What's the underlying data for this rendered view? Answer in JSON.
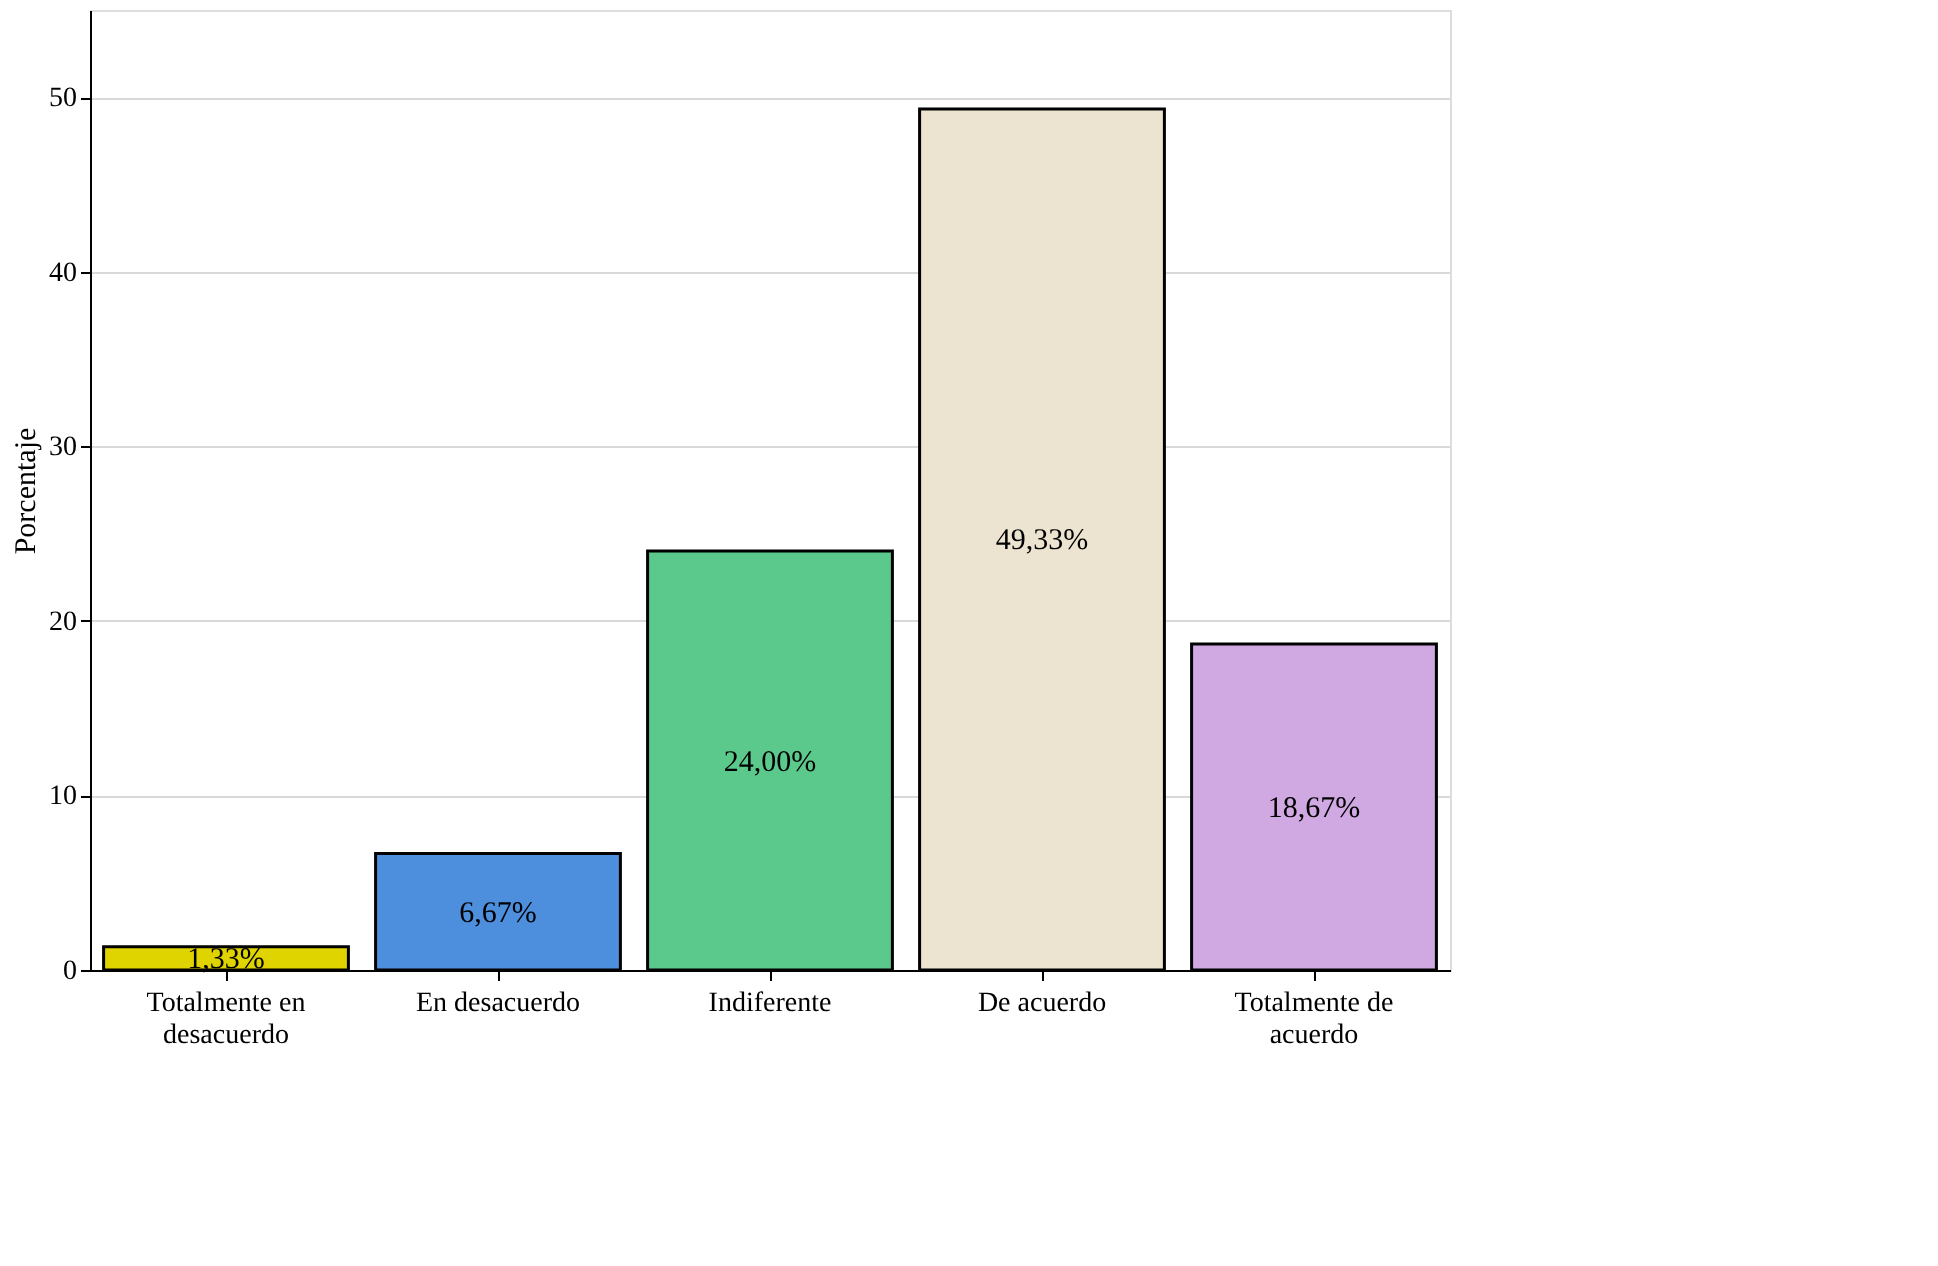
{
  "chart_data": {
    "type": "bar",
    "ylabel": "Porcentaje",
    "categories": [
      "Totalmente en desacuerdo",
      "En desacuerdo",
      "Indiferente",
      "De acuerdo",
      "Totalmente de acuerdo"
    ],
    "values": [
      1.33,
      6.67,
      24.0,
      49.33,
      18.67
    ],
    "colors": [
      "#e0d400",
      "#4d8fdc",
      "#5cc98c",
      "#ece4d0",
      "#d0a8e2"
    ],
    "value_labels": [
      "1,33%",
      "6,67%",
      "24,00%",
      "49,33%",
      "18,67%"
    ],
    "ylim": [
      0,
      55
    ],
    "yticks": [
      0,
      10,
      20,
      30,
      40,
      50
    ],
    "grid": "y"
  }
}
